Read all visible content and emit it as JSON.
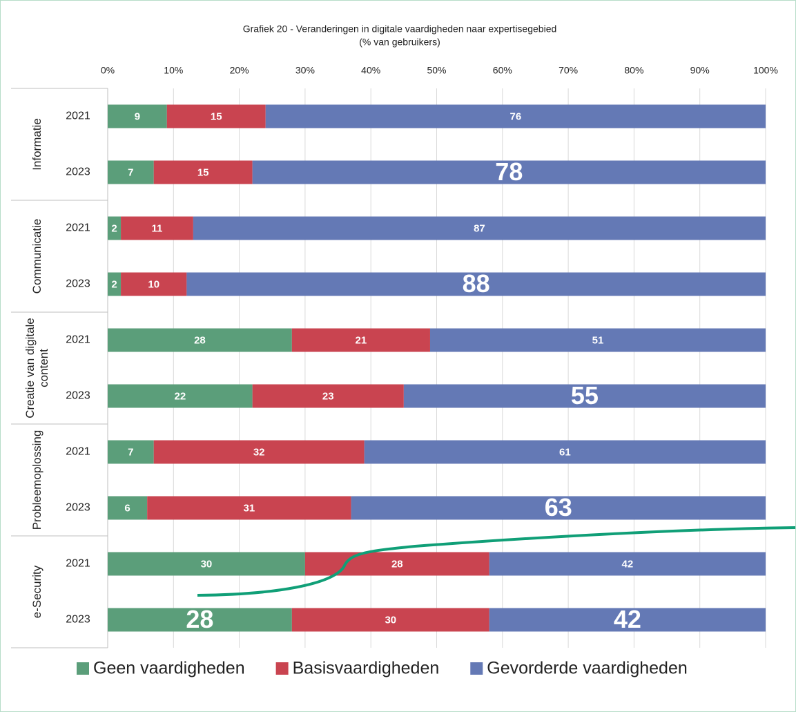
{
  "chart_data": {
    "type": "stacked-barh",
    "title": "Grafiek 20 - Veranderingen in digitale vaardigheden naar expertisegebied",
    "subtitle": "(% van gebruikers)",
    "groups": [
      "Informatie",
      "Communicatie",
      "Creatie van digitale content",
      "Probleemoplossing",
      "e-Security"
    ],
    "categories": [
      "2021",
      "2023",
      "2021",
      "2023",
      "2021",
      "2023",
      "2021",
      "2023",
      "2021",
      "2023"
    ],
    "series": [
      {
        "name": "Geen vaardigheden",
        "color": "#5b9e7a",
        "values": [
          9,
          7,
          2,
          2,
          28,
          22,
          7,
          6,
          30,
          28
        ]
      },
      {
        "name": "Basisvaardigheden",
        "color": "#c94450",
        "values": [
          15,
          15,
          11,
          10,
          21,
          23,
          32,
          31,
          28,
          30
        ]
      },
      {
        "name": "Gevorderde vaardigheden",
        "color": "#6479b5",
        "values": [
          76,
          78,
          87,
          88,
          51,
          55,
          61,
          63,
          42,
          42
        ]
      }
    ],
    "xlim": [
      0,
      100
    ],
    "xticks": [
      {
        "value": 0,
        "label": "0%"
      },
      {
        "value": 10,
        "label": "10%"
      },
      {
        "value": 20,
        "label": "20%"
      },
      {
        "value": 30,
        "label": "30%"
      },
      {
        "value": 40,
        "label": "40%"
      },
      {
        "value": 50,
        "label": "50%"
      },
      {
        "value": 60,
        "label": "60%"
      },
      {
        "value": 70,
        "label": "70%"
      },
      {
        "value": 80,
        "label": "80%"
      },
      {
        "value": 90,
        "label": "90%"
      },
      {
        "value": 100,
        "label": "100%"
      }
    ],
    "grid": true,
    "legend": "bottom"
  }
}
